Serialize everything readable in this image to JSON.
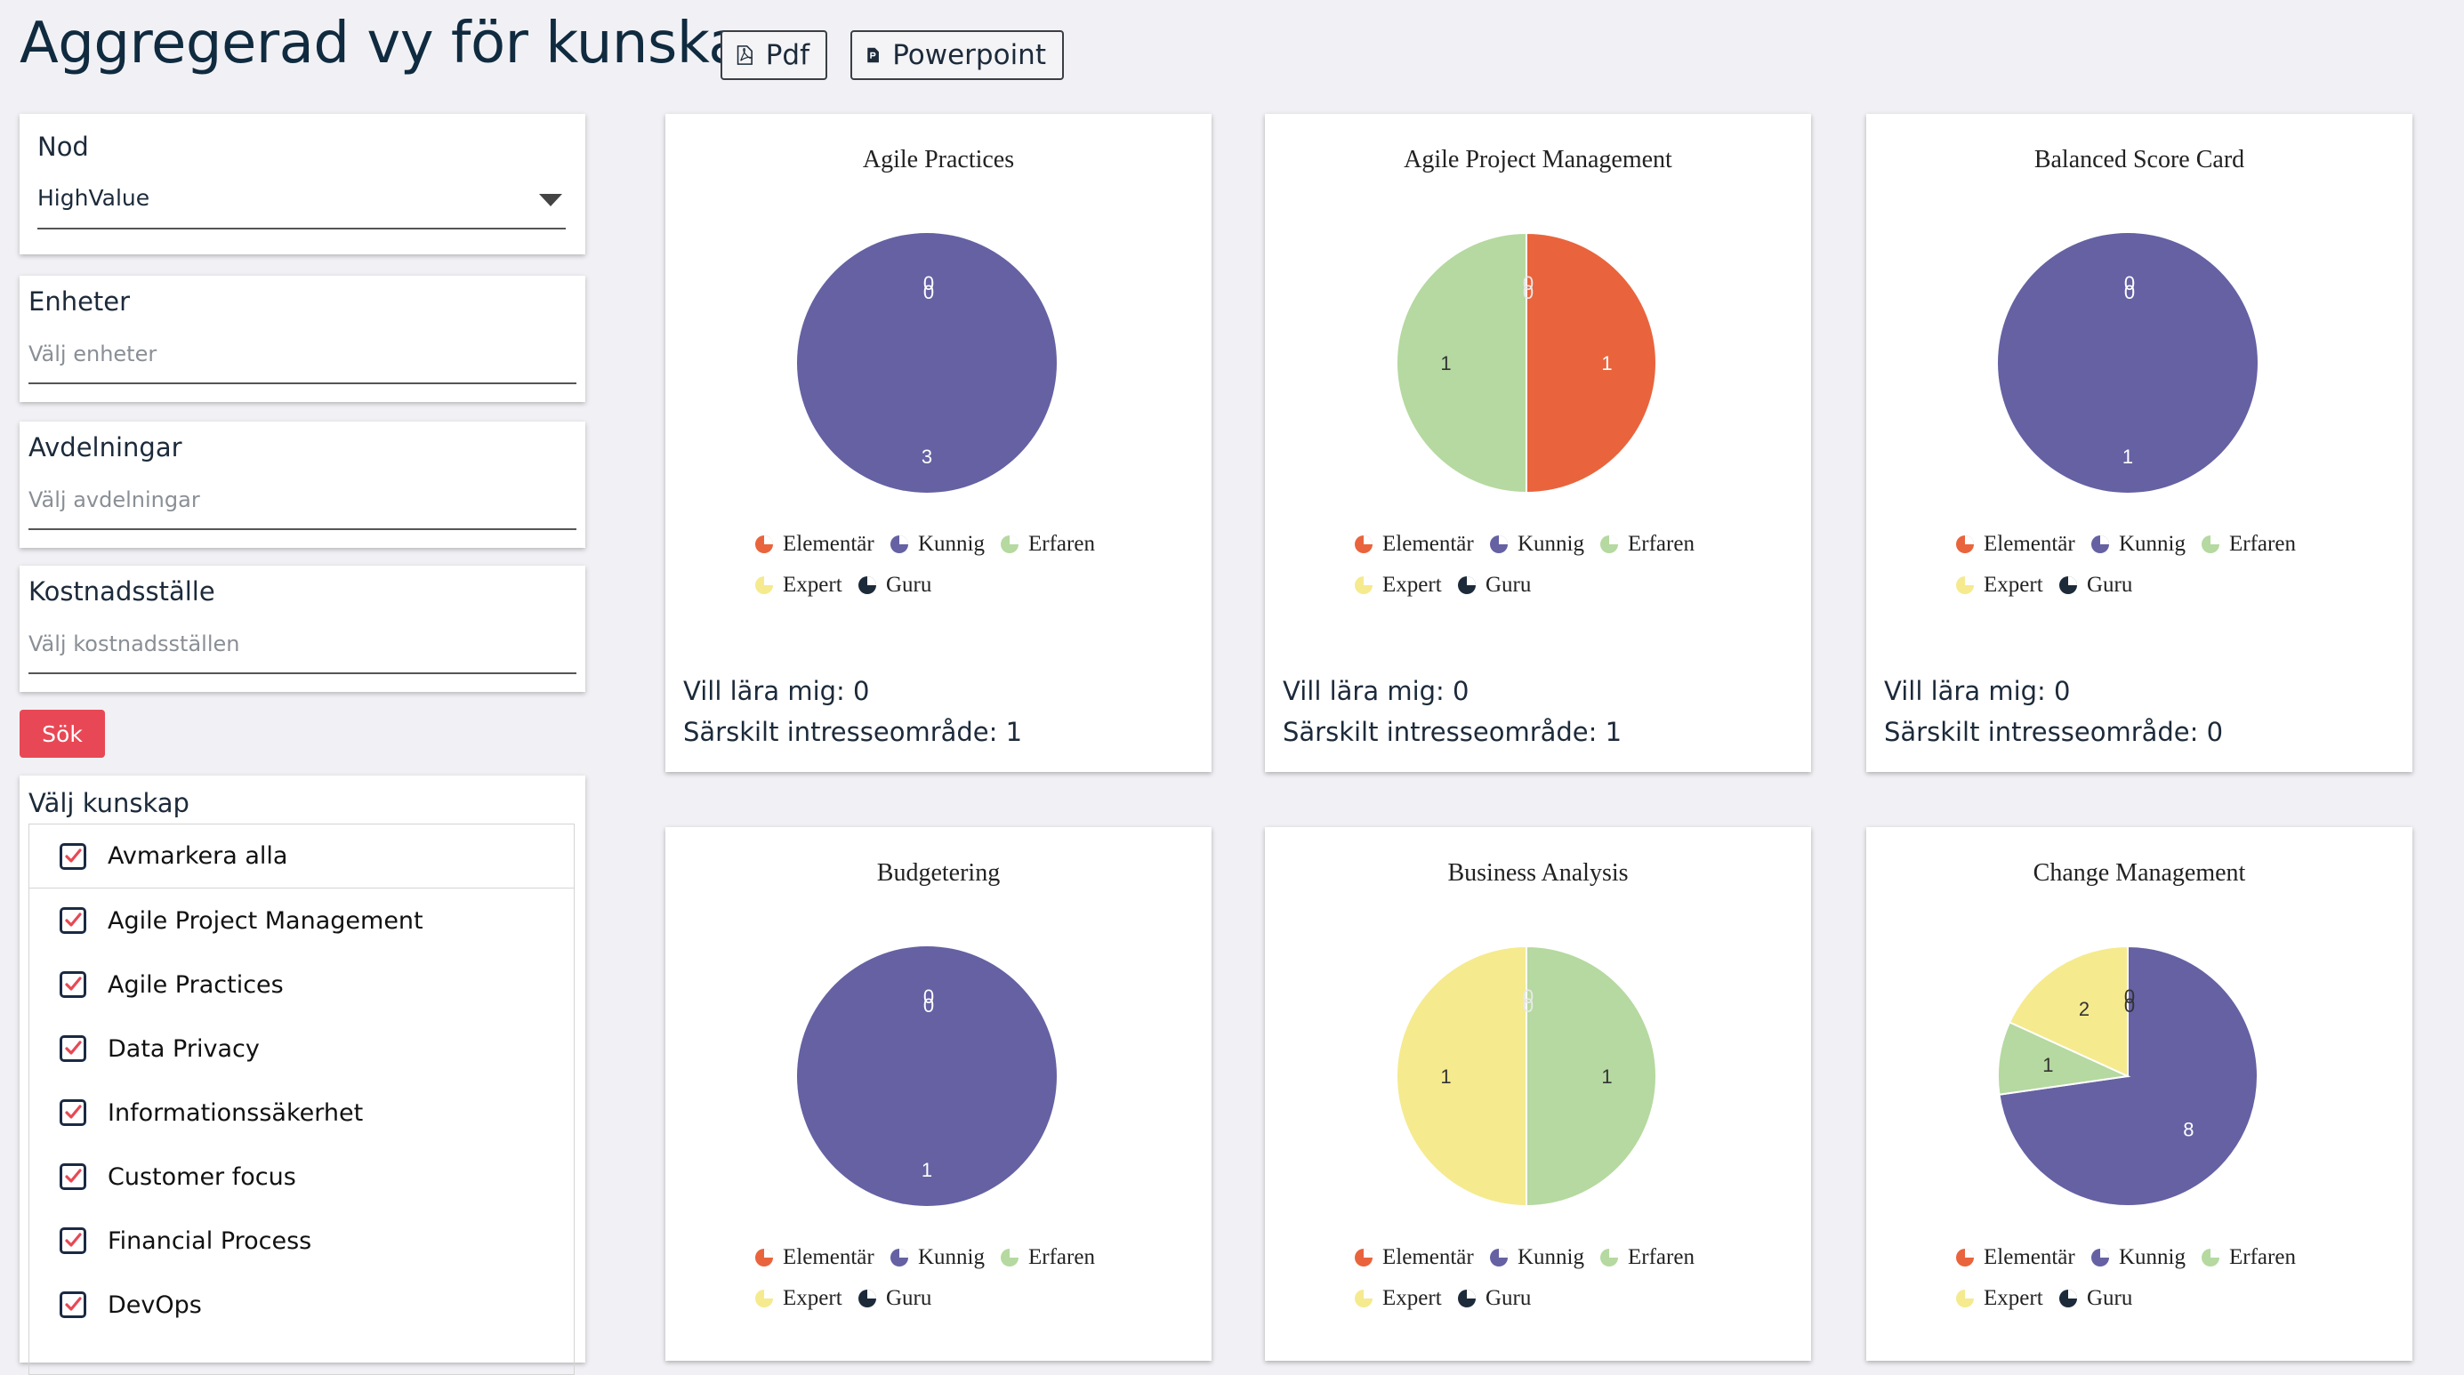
{
  "header": {
    "title": "Aggregerad vy för kunskap",
    "pdf_label": "Pdf",
    "ppt_label": "Powerpoint"
  },
  "filters": {
    "node": {
      "label": "Nod",
      "value": "HighValue"
    },
    "units": {
      "label": "Enheter",
      "placeholder": "Välj enheter"
    },
    "departments": {
      "label": "Avdelningar",
      "placeholder": "Välj avdelningar"
    },
    "cost_centers": {
      "label": "Kostnadsställe",
      "placeholder": "Välj kostnadsställen"
    },
    "search_label": "Sök"
  },
  "skills": {
    "title": "Välj kunskap",
    "items": [
      {
        "label": "Avmarkera alla",
        "checked": true
      },
      {
        "label": "Agile Project Management",
        "checked": true
      },
      {
        "label": "Agile Practices",
        "checked": true
      },
      {
        "label": "Data Privacy",
        "checked": true
      },
      {
        "label": "Informationssäkerhet",
        "checked": true
      },
      {
        "label": "Customer focus",
        "checked": true
      },
      {
        "label": "Financial Process",
        "checked": true
      },
      {
        "label": "DevOps",
        "checked": true
      }
    ]
  },
  "legend": {
    "labels": [
      "Elementär",
      "Kunnig",
      "Erfaren",
      "Expert",
      "Guru"
    ],
    "colors": [
      "#e9643c",
      "#6561a3",
      "#b5d9a0",
      "#f5ea8e",
      "#1c2a3a"
    ]
  },
  "footer_labels": {
    "want_learn": "Vill lära mig: ",
    "interest": "Särskilt intresseområde: "
  },
  "chart_data": [
    {
      "type": "pie",
      "title": "Agile Practices",
      "categories": [
        "Elementär",
        "Kunnig",
        "Erfaren",
        "Expert",
        "Guru"
      ],
      "values": [
        0,
        3,
        0,
        0,
        0
      ],
      "shown_labels": [
        "0",
        "0",
        "3"
      ],
      "want_learn": 0,
      "interest": 1
    },
    {
      "type": "pie",
      "title": "Agile Project Management",
      "categories": [
        "Elementär",
        "Kunnig",
        "Erfaren",
        "Expert",
        "Guru"
      ],
      "values": [
        1,
        0,
        1,
        0,
        0
      ],
      "shown_labels": [
        "1",
        "1",
        "0",
        "0"
      ],
      "want_learn": 0,
      "interest": 1
    },
    {
      "type": "pie",
      "title": "Balanced Score Card",
      "categories": [
        "Elementär",
        "Kunnig",
        "Erfaren",
        "Expert",
        "Guru"
      ],
      "values": [
        0,
        1,
        0,
        0,
        0
      ],
      "shown_labels": [
        "0",
        "0",
        "1"
      ],
      "want_learn": 0,
      "interest": 0
    },
    {
      "type": "pie",
      "title": "Budgetering",
      "categories": [
        "Elementär",
        "Kunnig",
        "Erfaren",
        "Expert",
        "Guru"
      ],
      "values": [
        0,
        1,
        0,
        0,
        0
      ],
      "shown_labels": [
        "0",
        "0",
        "1"
      ]
    },
    {
      "type": "pie",
      "title": "Business Analysis",
      "categories": [
        "Elementär",
        "Kunnig",
        "Erfaren",
        "Expert",
        "Guru"
      ],
      "values": [
        0,
        0,
        1,
        1,
        0
      ],
      "shown_labels": [
        "0",
        "0",
        "1",
        "1"
      ]
    },
    {
      "type": "pie",
      "title": "Change Management",
      "categories": [
        "Elementär",
        "Kunnig",
        "Erfaren",
        "Expert",
        "Guru"
      ],
      "values": [
        0,
        8,
        1,
        2,
        0
      ],
      "shown_labels": [
        "0",
        "0",
        "8",
        "1",
        "2"
      ]
    }
  ]
}
